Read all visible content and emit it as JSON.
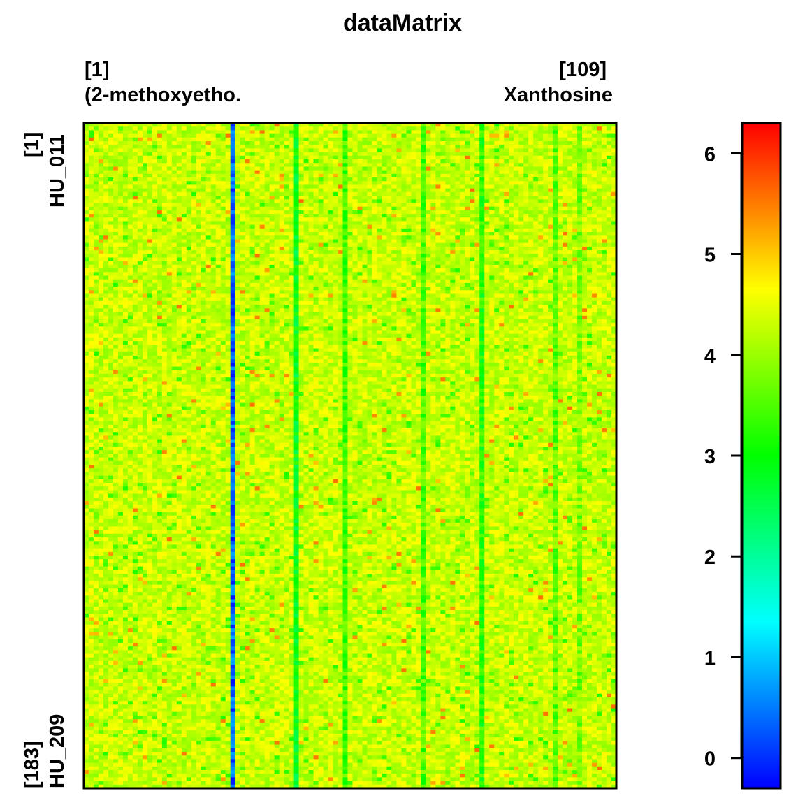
{
  "chart_data": {
    "type": "heatmap",
    "title": "dataMatrix",
    "n_columns": 109,
    "n_rows": 183,
    "columns": {
      "first_index": "[1]",
      "first_name": "(2-methoxyetho.",
      "last_index": "[109]",
      "last_name": "Xanthosine"
    },
    "rows": {
      "first_index": "[1]",
      "first_name": "HU_011",
      "last_index": "[183]",
      "last_name": "HU_209"
    },
    "color_scale": {
      "range": [
        -0.3,
        6.3
      ],
      "ticks": [
        "0",
        "1",
        "2",
        "3",
        "4",
        "5",
        "6"
      ],
      "tick_values": [
        0,
        1,
        2,
        3,
        4,
        5,
        6
      ],
      "colors": [
        "#0000ff",
        "#00ffff",
        "#00ff00",
        "#ffff00",
        "#ff0000"
      ]
    },
    "typical_value": 4.3,
    "low_value_columns": [
      {
        "column": 31,
        "value": 0.3
      },
      {
        "column": 44,
        "value": 2.9
      },
      {
        "column": 54,
        "value": 3.4
      },
      {
        "column": 70,
        "value": 3.5
      },
      {
        "column": 82,
        "value": 3.2
      },
      {
        "column": 97,
        "value": 3.6
      },
      {
        "column": 102,
        "value": 3.8
      }
    ]
  }
}
